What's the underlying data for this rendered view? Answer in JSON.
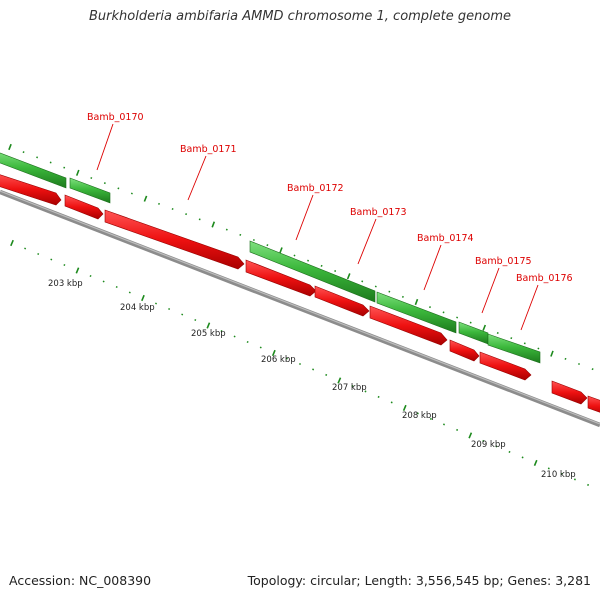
{
  "title": "Burkholderia ambifaria AMMD chromosome 1, complete genome",
  "footer": {
    "accession": "Accession: NC_008390",
    "summary": "Topology: circular; Length: 3,556,545 bp; Genes: 3,281"
  },
  "colors": {
    "backbone": "#8c8c8c",
    "gene_forward": "#2fa82f",
    "gene_reverse": "#ee1111",
    "ticks": "#1d8a1d",
    "label": "#dd0000"
  },
  "axis": {
    "unit": "kbp",
    "tick_labels": [
      "203 kbp",
      "204 kbp",
      "205 kbp",
      "206 kbp",
      "207 kbp",
      "208 kbp",
      "209 kbp",
      "210 kbp"
    ]
  },
  "gene_labels": [
    "Bamb_0170",
    "Bamb_0171",
    "Bamb_0172",
    "Bamb_0173",
    "Bamb_0174",
    "Bamb_0175",
    "Bamb_0176"
  ]
}
